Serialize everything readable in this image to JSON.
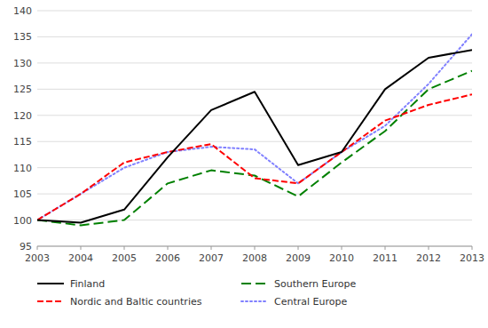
{
  "chart_data": {
    "type": "line",
    "x": [
      2003,
      2004,
      2005,
      2006,
      2007,
      2008,
      2009,
      2010,
      2011,
      2012,
      2013
    ],
    "series": [
      {
        "name": "Finland",
        "color": "#000000",
        "line_style": "solid",
        "values": [
          100,
          99.5,
          102,
          112,
          121,
          124.5,
          110.5,
          113,
          125,
          131,
          132.5
        ]
      },
      {
        "name": "Nordic and Baltic countries",
        "color": "#ff0000",
        "line_style": "dashed",
        "values": [
          100,
          105,
          111,
          113,
          114.5,
          108,
          107,
          113,
          119,
          122,
          124
        ]
      },
      {
        "name": "Southern Europe",
        "color": "#008000",
        "line_style": "long-dashed",
        "values": [
          100,
          99,
          100,
          107,
          109.5,
          108.5,
          104.5,
          111,
          117,
          125,
          128.5
        ]
      },
      {
        "name": "Central Europe",
        "color": "#8080ff",
        "line_style": "dotted",
        "values": [
          100,
          105,
          110,
          113,
          114,
          113.5,
          107,
          113,
          118,
          126,
          135.5
        ]
      }
    ],
    "xlim": [
      2003,
      2013
    ],
    "xticks": [
      2003,
      2004,
      2005,
      2006,
      2007,
      2008,
      2009,
      2010,
      2011,
      2012,
      2013
    ],
    "ylim": [
      95,
      140
    ],
    "yticks": [
      95,
      100,
      105,
      110,
      115,
      120,
      125,
      130,
      135,
      140
    ],
    "grid": true,
    "legend": "bottom"
  }
}
